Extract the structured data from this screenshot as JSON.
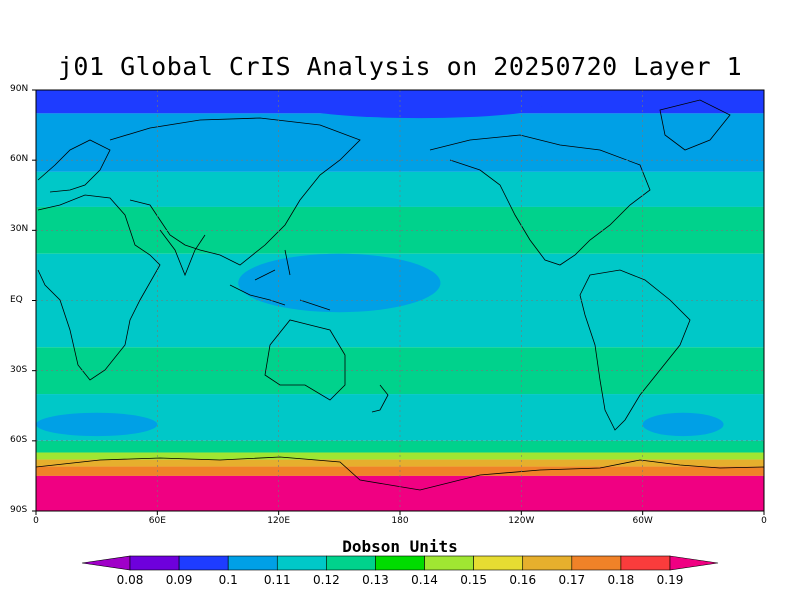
{
  "title": "j01 Global CrIS Analysis on 20250720 Layer 1",
  "lat_labels": [
    "90N",
    "60N",
    "30N",
    "EQ",
    "30S",
    "60S",
    "90S"
  ],
  "lon_labels": [
    "0",
    "60E",
    "120E",
    "180",
    "120W",
    "60W",
    "0"
  ],
  "colorbar": {
    "title": "Dobson Units",
    "ticks": [
      "0.08",
      "0.09",
      "0.1",
      "0.11",
      "0.12",
      "0.13",
      "0.14",
      "0.15",
      "0.16",
      "0.17",
      "0.18",
      "0.19"
    ],
    "colors": [
      "#a000c8",
      "#6e00dc",
      "#1e3cff",
      "#00a0e6",
      "#00c8c8",
      "#00d28c",
      "#00dc00",
      "#a0e632",
      "#e6dc32",
      "#e6af2d",
      "#f08228",
      "#fa3c3c",
      "#f00082"
    ]
  },
  "map_data": {
    "projection": "equirectangular",
    "lon_range": [
      0,
      360
    ],
    "lat_range": [
      -90,
      90
    ],
    "zonal_bands": [
      {
        "lat_from": 90,
        "lat_to": 80,
        "value": 0.09
      },
      {
        "lat_from": 80,
        "lat_to": 55,
        "value": 0.1
      },
      {
        "lat_from": 55,
        "lat_to": 40,
        "value": 0.11
      },
      {
        "lat_from": 40,
        "lat_to": 20,
        "value": 0.12
      },
      {
        "lat_from": 20,
        "lat_to": -20,
        "value": 0.11
      },
      {
        "lat_from": -20,
        "lat_to": -40,
        "value": 0.12
      },
      {
        "lat_from": -40,
        "lat_to": -60,
        "value": 0.11
      },
      {
        "lat_from": -60,
        "lat_to": -65,
        "value": 0.12
      },
      {
        "lat_from": -65,
        "lat_to": -68,
        "value": 0.14
      },
      {
        "lat_from": -68,
        "lat_to": -71,
        "value": 0.16
      },
      {
        "lat_from": -71,
        "lat_to": -75,
        "value": 0.17
      },
      {
        "lat_from": -75,
        "lat_to": -90,
        "value": 0.19
      }
    ],
    "patches": [
      {
        "lon": [
          100,
          200
        ],
        "lat": [
          -5,
          20
        ],
        "value": 0.1
      },
      {
        "lon": [
          0,
          60
        ],
        "lat": [
          -58,
          -48
        ],
        "value": 0.1
      },
      {
        "lon": [
          300,
          340
        ],
        "lat": [
          -58,
          -48
        ],
        "value": 0.1
      },
      {
        "lon": [
          130,
          250
        ],
        "lat": [
          78,
          88
        ],
        "value": 0.09
      }
    ]
  }
}
